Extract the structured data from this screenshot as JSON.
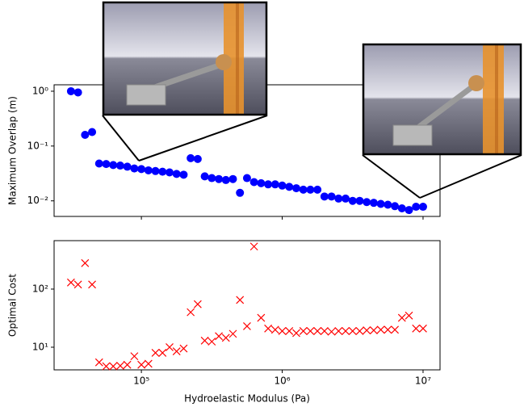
{
  "chart_data": [
    {
      "type": "scatter",
      "ylabel": "Maximum Overlap (m)",
      "log_x": true,
      "log_y": true,
      "marker": "circle",
      "color": "#0000ff",
      "x": [
        31623,
        35481,
        39811,
        44668,
        50119,
        56234,
        63096,
        70795,
        79433,
        89125,
        100000,
        112202,
        125893,
        141254,
        158489,
        177828,
        199526,
        223872,
        251189,
        281838,
        316228,
        354813,
        398107,
        446684,
        501187,
        562341,
        630957,
        707946,
        794328,
        891251,
        1000000,
        1122018,
        1258925,
        1412538,
        1584893,
        1778279,
        1995262,
        2238721,
        2511886,
        2818383,
        3162278,
        3548134,
        3981072,
        4466836,
        5011872,
        5623413,
        6309573,
        7079458,
        7943282,
        8912509,
        10000000
      ],
      "values": [
        1.0,
        0.95,
        0.16,
        0.18,
        0.048,
        0.047,
        0.045,
        0.044,
        0.042,
        0.039,
        0.038,
        0.036,
        0.035,
        0.034,
        0.033,
        0.031,
        0.03,
        0.06,
        0.058,
        0.028,
        0.026,
        0.025,
        0.024,
        0.025,
        0.014,
        0.026,
        0.022,
        0.021,
        0.02,
        0.02,
        0.019,
        0.018,
        0.017,
        0.016,
        0.016,
        0.016,
        0.012,
        0.012,
        0.011,
        0.011,
        0.01,
        0.01,
        0.0095,
        0.0092,
        0.0088,
        0.0085,
        0.008,
        0.0073,
        0.0068,
        0.0078,
        0.0078
      ],
      "xlim": [
        24000,
        13200000
      ],
      "xticks": [
        100000,
        1000000,
        10000000
      ],
      "ylim": [
        0.0052,
        1.31
      ],
      "yticks": [
        {
          "value": 1,
          "label": "10⁰"
        },
        {
          "value": 0.1,
          "label": "10⁻¹"
        },
        {
          "value": 0.01,
          "label": "10⁻²"
        }
      ]
    },
    {
      "type": "scatter",
      "xlabel": "Hydroelastic Modulus (Pa)",
      "ylabel": "Optimal Cost",
      "log_x": true,
      "log_y": true,
      "marker": "x",
      "color": "#ff0000",
      "x": [
        31623,
        35481,
        39811,
        44668,
        50119,
        56234,
        63096,
        70795,
        79433,
        89125,
        100000,
        112202,
        125893,
        141254,
        158489,
        177828,
        199526,
        223872,
        251189,
        281838,
        316228,
        354813,
        398107,
        446684,
        501187,
        562341,
        630957,
        707946,
        794328,
        891251,
        1000000,
        1122018,
        1258925,
        1412538,
        1584893,
        1778279,
        1995262,
        2238721,
        2511886,
        2818383,
        3162278,
        3548134,
        3981072,
        4466836,
        5011872,
        5623413,
        6309573,
        7079458,
        7943282,
        8912509,
        10000000
      ],
      "values": [
        130,
        120,
        280,
        120,
        5.5,
        4.7,
        4.7,
        4.8,
        5,
        7,
        5,
        5.2,
        8,
        8,
        10,
        8.5,
        9.5,
        40,
        55,
        13,
        12.5,
        15.5,
        14.5,
        17,
        65,
        23,
        540,
        32,
        21,
        20,
        19,
        19,
        17.5,
        19,
        19,
        19,
        19,
        18.5,
        19,
        19,
        19,
        19,
        19.5,
        19.5,
        20,
        20,
        20,
        32,
        35,
        21,
        21
      ],
      "xlim": [
        24000,
        13200000
      ],
      "xticks": [
        {
          "value": 100000,
          "label": "10⁵"
        },
        {
          "value": 1000000,
          "label": "10⁶"
        },
        {
          "value": 10000000,
          "label": "10⁷"
        }
      ],
      "ylim": [
        4.08,
        681
      ],
      "yticks": [
        {
          "value": 10,
          "label": "10¹"
        },
        {
          "value": 100,
          "label": "10²"
        }
      ]
    }
  ]
}
